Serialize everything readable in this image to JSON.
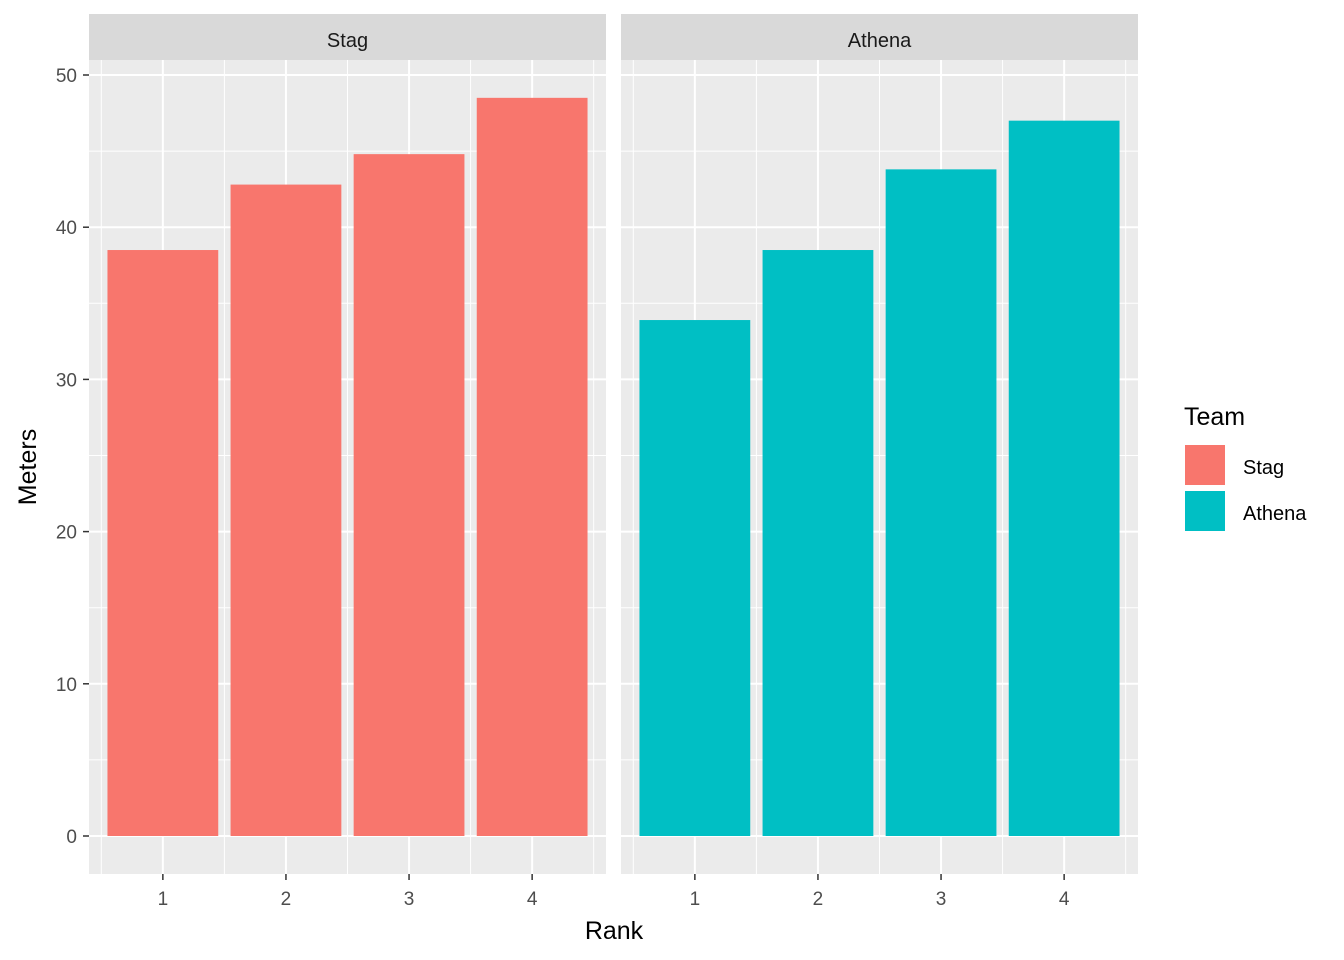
{
  "chart_data": {
    "type": "bar",
    "facets": [
      "Stag",
      "Athena"
    ],
    "categories": [
      "1",
      "2",
      "3",
      "4"
    ],
    "series": [
      {
        "name": "Stag",
        "color": "#F8766D",
        "values": [
          38.5,
          42.8,
          44.8,
          48.5
        ]
      },
      {
        "name": "Athena",
        "color": "#00BFC4",
        "values": [
          33.9,
          38.5,
          43.8,
          47.0
        ]
      }
    ],
    "xlabel": "Rank",
    "ylabel": "Meters",
    "ylim": [
      0,
      52.5
    ],
    "yticks": [
      "0",
      "10",
      "20",
      "30",
      "40",
      "50"
    ],
    "grid": true,
    "legend": {
      "title": "Team",
      "position": "right",
      "items": [
        "Stag",
        "Athena"
      ]
    }
  }
}
